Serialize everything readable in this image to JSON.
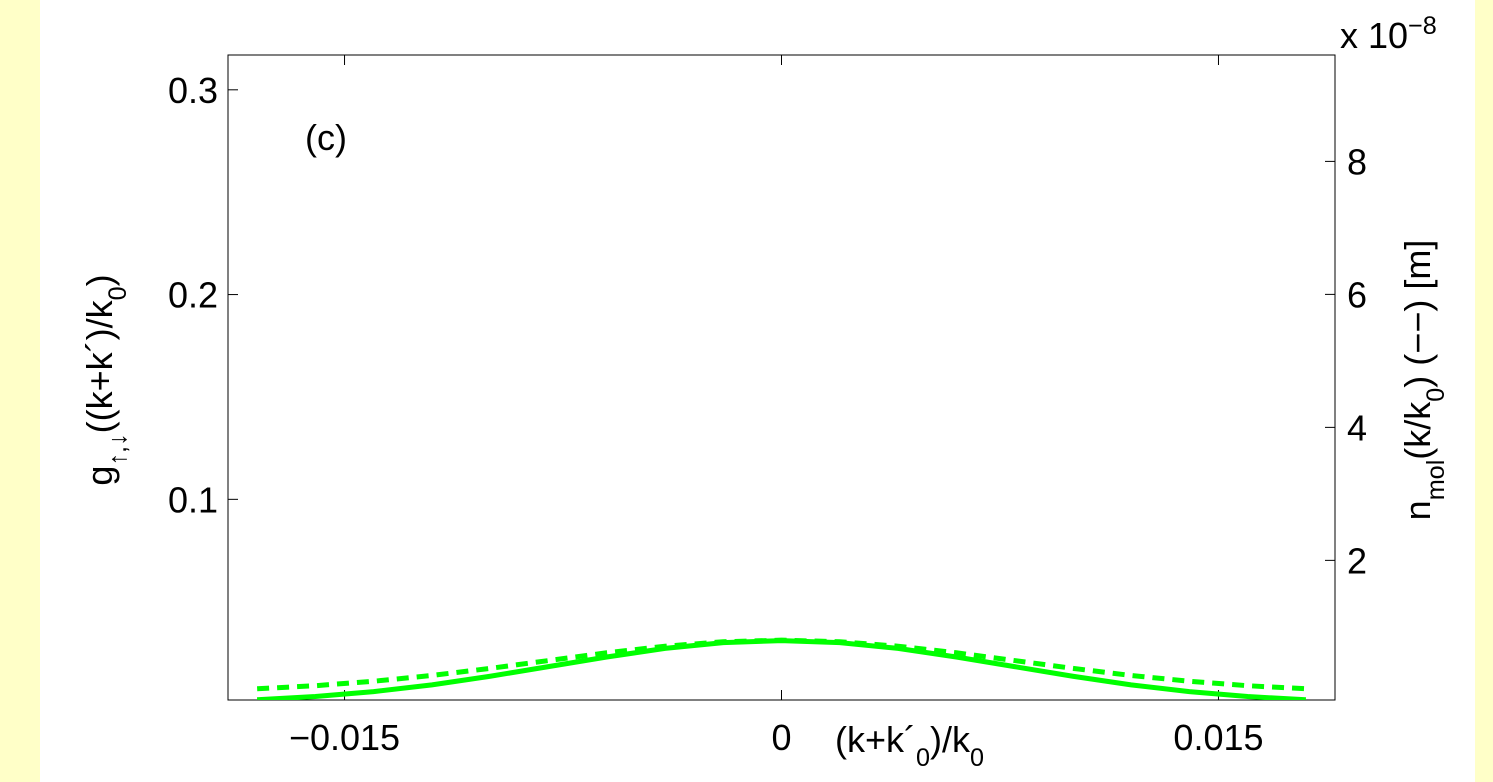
{
  "chart_data": {
    "type": "line",
    "annotation": "(c)",
    "xlabel": [
      "(k+k´",
      "0",
      ")/k",
      "0"
    ],
    "ylabel": [
      "g",
      "↑,↓",
      "((k+k´)/k",
      "0",
      ")"
    ],
    "y2label": [
      "n",
      "mol",
      "(k/k",
      "0",
      ") (−−) [m]"
    ],
    "y2_multiplier": [
      "x 10",
      "−8"
    ],
    "x": [
      -0.018,
      -0.016,
      -0.014,
      -0.012,
      -0.01,
      -0.008,
      -0.006,
      -0.004,
      -0.002,
      0,
      0.002,
      0.004,
      0.006,
      0.008,
      0.01,
      0.012,
      0.014,
      0.016,
      0.018
    ],
    "series": [
      {
        "color": "#00ff00",
        "line_style": "solid",
        "axis": "y",
        "values": [
          0.0021,
          0.0037,
          0.0061,
          0.0094,
          0.0136,
          0.0183,
          0.023,
          0.0272,
          0.03,
          0.031,
          0.03,
          0.0272,
          0.023,
          0.0183,
          0.0136,
          0.0094,
          0.0061,
          0.0037,
          0.0021
        ]
      },
      {
        "color": "#00ff00",
        "line_style": "dashed",
        "axis": "y2",
        "values": [
          0.069,
          0.115,
          0.182,
          0.269,
          0.376,
          0.493,
          0.61,
          0.709,
          0.776,
          0.8,
          0.776,
          0.709,
          0.61,
          0.493,
          0.376,
          0.269,
          0.182,
          0.115,
          0.069
        ]
      }
    ],
    "xlim": [
      -0.019,
      0.019
    ],
    "xticks": [
      {
        "value": -0.015,
        "label": "−0.015"
      },
      0,
      0.015
    ],
    "ylim": [
      0.002,
      0.317
    ],
    "yticks": [
      0.1,
      0.2,
      0.3
    ],
    "y2lim": [
      -0.1,
      9.6
    ],
    "y2ticks": [
      2,
      4,
      6,
      8
    ],
    "label_color": "#00ff00"
  }
}
